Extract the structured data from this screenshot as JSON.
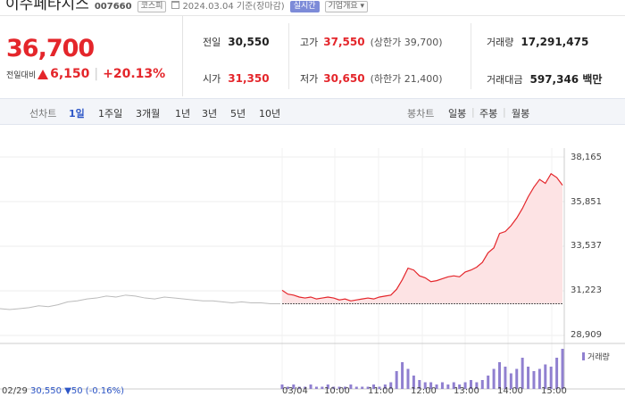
{
  "header": {
    "stock_name": "이수페타시스",
    "code": "007660",
    "market_badge": "코스피",
    "date_text": "2024.03.04 기준(장마감)",
    "realtime_badge": "실시간",
    "company_info_badge": "기업개요 ▾"
  },
  "price": {
    "current": "36,700",
    "change_label": "전일대비",
    "change_amount": "6,150",
    "change_percent": "+20.13%",
    "color_up": "#e4262b"
  },
  "stats": {
    "prev_close_label": "전일",
    "prev_close": "30,550",
    "high_label": "고가",
    "high": "37,550",
    "upper_limit_label": "(상한가",
    "upper_limit": "39,700)",
    "volume_label": "거래량",
    "volume": "17,291,475",
    "open_label": "시가",
    "open": "31,350",
    "low_label": "저가",
    "low": "30,650",
    "lower_limit_label": "(하한가",
    "lower_limit": "21,400)",
    "amount_label": "거래대금",
    "amount": "597,346 백만"
  },
  "period_bar": {
    "line_chart_label": "선차트",
    "periods": [
      "1일",
      "1주일",
      "3개월",
      "1년",
      "3년",
      "5년",
      "10년"
    ],
    "candle_label": "봉차트",
    "candles": [
      "일봉",
      "주봉",
      "월봉"
    ]
  },
  "chart_data": {
    "type": "line",
    "y_ticks": [
      "38,165",
      "35,851",
      "33,537",
      "31,223",
      "28,909"
    ],
    "ylim": [
      28909,
      38165
    ],
    "x_ticks": [
      "03/04",
      "10:00",
      "11:00",
      "12:00",
      "13:00",
      "14:00",
      "15:00"
    ],
    "volume_label": "거래량",
    "prev_day": {
      "date": "02/29",
      "close": "30,550",
      "change": "▼50 (-0.16%)"
    },
    "previous_close_line": 30550,
    "prev_day_series": [
      30300,
      30250,
      30300,
      30350,
      30450,
      30400,
      30500,
      30650,
      30700,
      30800,
      30850,
      30950,
      30900,
      31000,
      30950,
      30850,
      30800,
      30900,
      30850,
      30800,
      30750,
      30700,
      30700,
      30650,
      30600,
      30650,
      30600,
      30600,
      30550,
      30550
    ],
    "today_series": [
      31250,
      31050,
      31000,
      30900,
      30850,
      30900,
      30800,
      30850,
      30900,
      30850,
      30750,
      30800,
      30700,
      30750,
      30800,
      30850,
      30800,
      30900,
      30950,
      31000,
      31300,
      31800,
      32400,
      32300,
      32000,
      31900,
      31700,
      31750,
      31850,
      31950,
      32000,
      31950,
      32200,
      32300,
      32450,
      32700,
      33200,
      33450,
      34200,
      34300,
      34600,
      35000,
      35500,
      36100,
      36600,
      37000,
      36800,
      37300,
      37100,
      36700
    ],
    "volume": [
      2,
      1,
      2,
      1,
      1,
      2,
      1,
      1,
      2,
      1,
      1,
      1,
      2,
      1,
      1,
      1,
      2,
      1,
      2,
      3,
      8,
      12,
      9,
      6,
      4,
      3,
      3,
      2,
      3,
      2,
      3,
      2,
      3,
      4,
      3,
      4,
      6,
      9,
      12,
      10,
      7,
      9,
      14,
      10,
      8,
      9,
      11,
      10,
      14,
      18
    ],
    "grid": true,
    "colors": {
      "today_line": "#e4262b",
      "today_fill": "#fde3e4",
      "prev_line": "#bbbbbb",
      "volume_bar": "#9080d0"
    }
  }
}
